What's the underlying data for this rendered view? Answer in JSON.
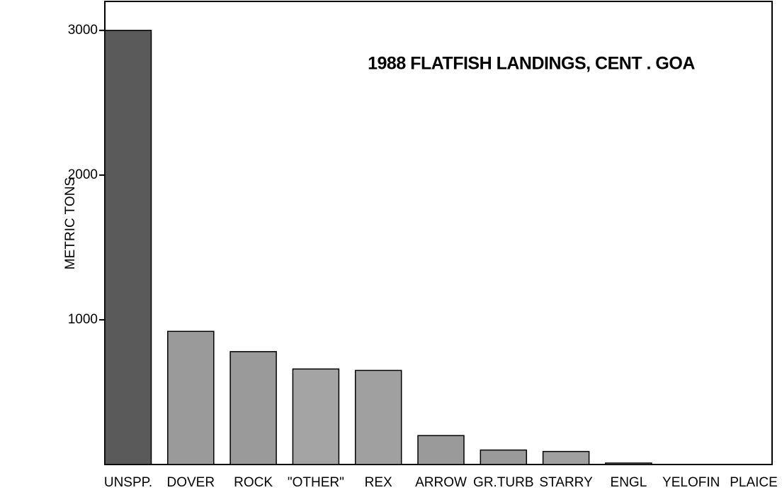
{
  "chart_data": {
    "type": "bar",
    "title": "1988 FLATFISH LANDINGS, CENT . GOA",
    "y_label": "METRIC TONS",
    "categories": [
      "UNSPP.",
      "DOVER",
      "ROCK",
      "\"OTHER\"",
      "REX",
      "ARROW",
      "GR.TURB",
      "STARRY",
      "ENGL",
      "YELOFIN",
      "PLAICE"
    ],
    "values": [
      3000,
      920,
      780,
      660,
      650,
      200,
      100,
      90,
      10,
      0,
      0
    ],
    "colors": [
      "#5a5a5a",
      "#9a9a9a",
      "#9a9a9a",
      "#a4a4a4",
      "#a0a0a0",
      "#9a9a9a",
      "#9a9a9a",
      "#a0a0a0",
      "#9a9a9a",
      "#9a9a9a",
      "#9a9a9a"
    ],
    "ylim": [
      0,
      3200
    ],
    "yticks": [
      1000,
      2000,
      3000
    ]
  }
}
